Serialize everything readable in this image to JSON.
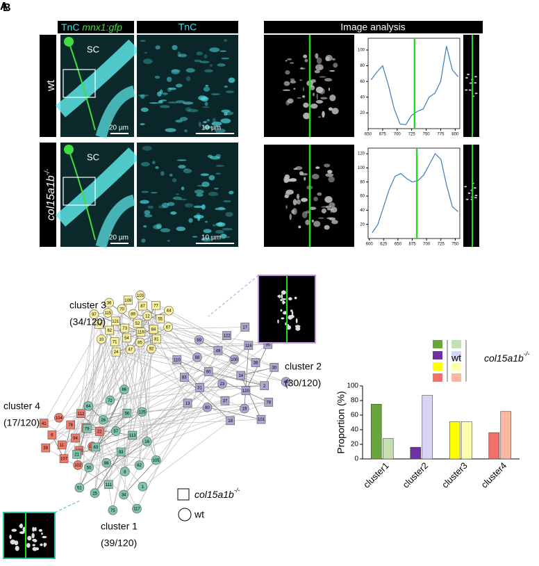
{
  "panel_labels": [
    "A",
    "B"
  ],
  "panel_a": {
    "header_merge": "TnC",
    "header_gfp": "mnx1:gfp",
    "header_tnc": "TnC",
    "header_analysis": "Image analysis",
    "rows": [
      {
        "label": "wt"
      },
      {
        "label": "col15a1b",
        "superscript": "-/-"
      }
    ],
    "sc_label": "SC",
    "scale_bar_overview": "20 µm",
    "scale_bar_zoom": "10 µm"
  },
  "chart_data": [
    {
      "type": "line",
      "x": [
        655,
        665,
        675,
        685,
        695,
        705,
        715,
        725,
        735,
        745,
        755,
        765,
        775,
        785,
        795,
        805
      ],
      "values": [
        62,
        72,
        80,
        55,
        25,
        6,
        5,
        17,
        22,
        25,
        40,
        45,
        60,
        105,
        75,
        66
      ],
      "color": "#3a7bbf",
      "xlim": [
        650,
        808
      ],
      "ylim": [
        0,
        115
      ],
      "xticks": [
        650,
        675,
        700,
        725,
        750,
        775,
        800
      ],
      "yticks": [
        20,
        40,
        60,
        80,
        100
      ],
      "cursor_x": 730,
      "cursor_color": "#22dd22"
    },
    {
      "type": "line",
      "x": [
        605,
        615,
        625,
        635,
        645,
        655,
        665,
        675,
        685,
        695,
        705,
        715,
        725,
        735,
        745,
        755
      ],
      "values": [
        8,
        20,
        45,
        70,
        88,
        92,
        85,
        80,
        82,
        90,
        105,
        120,
        112,
        75,
        45,
        38
      ],
      "color": "#3a7bbf",
      "xlim": [
        598,
        758
      ],
      "ylim": [
        0,
        128
      ],
      "xticks": [
        600,
        625,
        650,
        675,
        700,
        725,
        750
      ],
      "yticks": [
        20,
        40,
        60,
        80,
        100,
        120
      ],
      "cursor_x": 683,
      "cursor_color": "#22dd22"
    },
    {
      "type": "bar",
      "y_label": "Proportion (%)",
      "categories": [
        "cluster1",
        "cluster2",
        "cluster3",
        "cluster4"
      ],
      "series": [
        {
          "name": "wt",
          "colors": [
            "#6aa43c",
            "#7030a0",
            "#ffff00",
            "#f0706a"
          ],
          "values": [
            75,
            16,
            51,
            36
          ]
        },
        {
          "name": "col15a1b",
          "name_superscript": "-/-",
          "colors": [
            "#c5dfb0",
            "#d8d4f4",
            "#ffffb0",
            "#f9b8a0"
          ],
          "values": [
            28,
            87,
            51,
            65
          ]
        }
      ],
      "ylim": [
        0,
        100
      ],
      "yticks": [
        0,
        20,
        40,
        60,
        80,
        100
      ]
    }
  ],
  "network": {
    "legend_square": "col15a1b",
    "legend_square_superscript": "-/-",
    "legend_circle": "wt",
    "clusters": [
      {
        "name": "cluster 3",
        "count": "(34/120)",
        "color": "#f8f0a0",
        "nodes": [
          "52",
          "73",
          "89",
          "116",
          "121",
          "12",
          "54",
          "70",
          "84",
          "82",
          "87",
          "85",
          "115",
          "55",
          "71",
          "109",
          "81",
          "74",
          "77",
          "47",
          "36",
          "67",
          "10",
          "103",
          "92",
          "97",
          "44",
          "24"
        ],
        "shapes": [
          "s",
          "s",
          "c",
          "s",
          "s",
          "c",
          "s",
          "c",
          "s",
          "s",
          "s",
          "c",
          "c",
          "s",
          "s",
          "s",
          "s",
          "s",
          "s",
          "c",
          "c",
          "c",
          "c",
          "c",
          "c",
          "c",
          "c",
          "s"
        ]
      },
      {
        "name": "cluster 2",
        "count": "(30/120)",
        "color": "#a9a6d0",
        "nodes": [
          "14",
          "23",
          "100",
          "120",
          "60",
          "38",
          "37",
          "49",
          "2",
          "31",
          "116",
          "19",
          "88",
          "30",
          "80",
          "122",
          "78",
          "83",
          "95",
          "18",
          "99",
          "48",
          "13",
          "17",
          "101",
          "110"
        ],
        "shapes": [
          "s",
          "c",
          "c",
          "s",
          "s",
          "s",
          "s",
          "s",
          "s",
          "s",
          "s",
          "c",
          "c",
          "s",
          "c",
          "s",
          "s",
          "s",
          "s",
          "s",
          "c",
          "c",
          "s",
          "s",
          "s",
          "s"
        ]
      },
      {
        "name": "cluster 4",
        "count": "(17/120)",
        "color": "#ee7a6a",
        "nodes": [
          "94",
          "11",
          "76",
          "120",
          "6",
          "68",
          "107",
          "104",
          "106",
          "39",
          "112",
          "102",
          "41",
          "22"
        ],
        "shapes": [
          "s",
          "s",
          "s",
          "s",
          "s",
          "s",
          "s",
          "c",
          "c",
          "s",
          "s",
          "c",
          "s",
          "s"
        ]
      },
      {
        "name": "cluster 1",
        "count": "(39/120)",
        "color": "#7fc2ad",
        "nodes": [
          "93",
          "86",
          "57",
          "8",
          "63",
          "113",
          "111",
          "26",
          "62",
          "50",
          "56",
          "34",
          "79",
          "16",
          "25",
          "72",
          "1",
          "21",
          "125",
          "75",
          "64",
          "105",
          "51",
          "66",
          "117"
        ],
        "shapes": [
          "s",
          "c",
          "c",
          "c",
          "s",
          "s",
          "s",
          "c",
          "c",
          "c",
          "s",
          "c",
          "s",
          "c",
          "c",
          "c",
          "c",
          "s",
          "c",
          "c",
          "c",
          "c",
          "c",
          "c",
          "c"
        ]
      }
    ]
  }
}
